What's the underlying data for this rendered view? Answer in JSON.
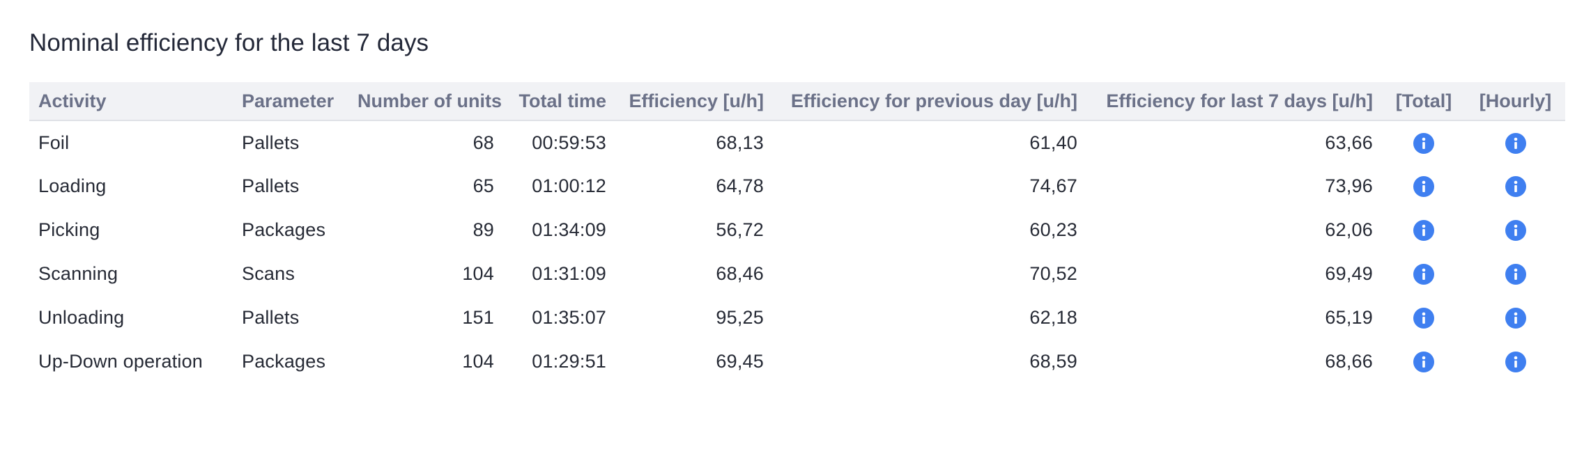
{
  "title": "Nominal efficiency for the last 7 days",
  "columns": [
    "Activity",
    "Parameter",
    "Number of units",
    "Total time",
    "Efficiency [u/h]",
    "Efficiency for previous day [u/h]",
    "Efficiency for last 7 days [u/h]",
    "[Total]",
    "[Hourly]"
  ],
  "rows": [
    {
      "activity": "Foil",
      "parameter": "Pallets",
      "units": "68",
      "time": "00:59:53",
      "eff": "68,13",
      "prev": "61,40",
      "last7": "63,66"
    },
    {
      "activity": "Loading",
      "parameter": "Pallets",
      "units": "65",
      "time": "01:00:12",
      "eff": "64,78",
      "prev": "74,67",
      "last7": "73,96"
    },
    {
      "activity": "Picking",
      "parameter": "Packages",
      "units": "89",
      "time": "01:34:09",
      "eff": "56,72",
      "prev": "60,23",
      "last7": "62,06"
    },
    {
      "activity": "Scanning",
      "parameter": "Scans",
      "units": "104",
      "time": "01:31:09",
      "eff": "68,46",
      "prev": "70,52",
      "last7": "69,49"
    },
    {
      "activity": "Unloading",
      "parameter": "Pallets",
      "units": "151",
      "time": "01:35:07",
      "eff": "95,25",
      "prev": "62,18",
      "last7": "65,19"
    },
    {
      "activity": "Up-Down operation",
      "parameter": "Packages",
      "units": "104",
      "time": "01:29:51",
      "eff": "69,45",
      "prev": "68,59",
      "last7": "68,66"
    }
  ],
  "icons": {
    "total": "info-icon",
    "hourly": "info-icon",
    "accent_color": "#3f7ff0"
  }
}
